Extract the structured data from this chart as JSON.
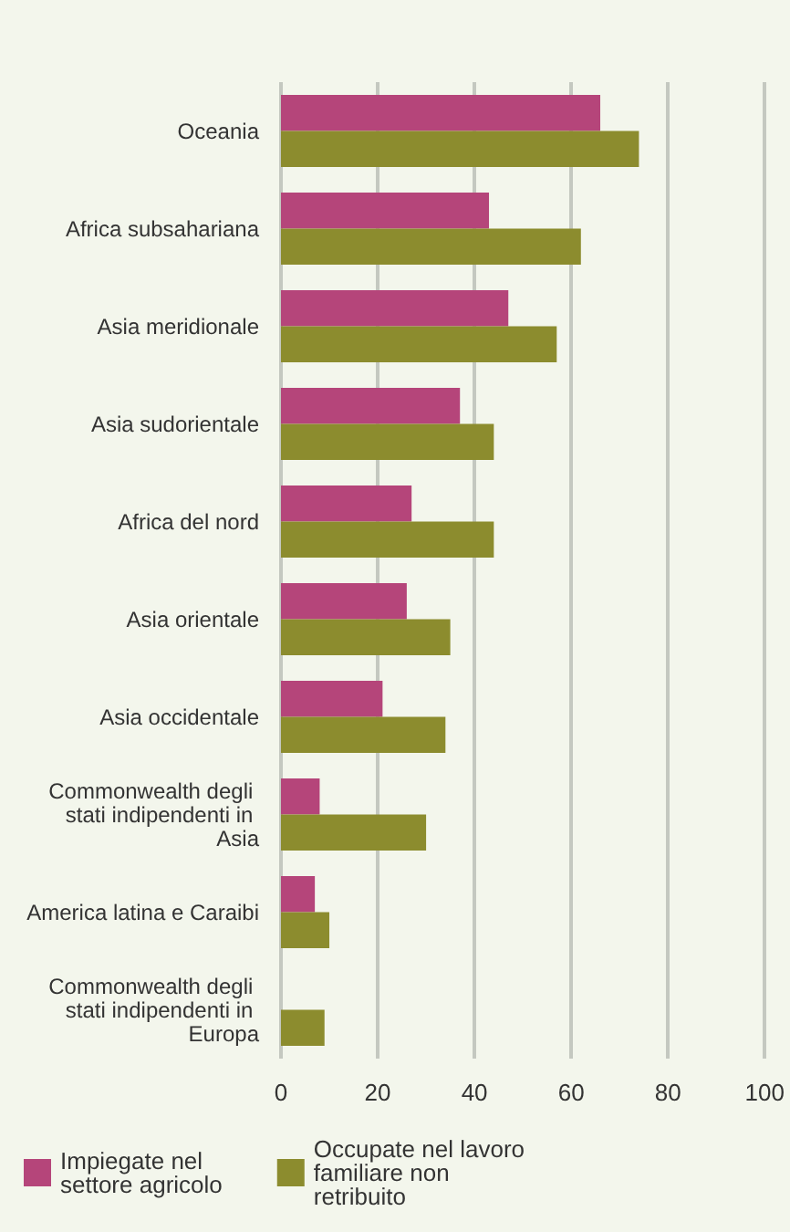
{
  "chart_data": {
    "type": "bar",
    "orientation": "horizontal",
    "categories": [
      "Oceania",
      "Africa subsahariana",
      "Asia meridionale",
      "Asia sudorientale",
      "Africa del nord",
      "Asia orientale",
      "Asia occidentale",
      "Commonwealth degli stati indipendenti in Asia",
      "America latina e Caraibi",
      "Commonwealth degli stati indipendenti in Europa"
    ],
    "series": [
      {
        "name": "Impiegate nel settore agricolo",
        "color": "#b5457a",
        "values": [
          66,
          43,
          47,
          37,
          27,
          26,
          21,
          8,
          7,
          null
        ]
      },
      {
        "name": "Occupate nel lavoro familiare non retribuito",
        "color": "#8c8c2e",
        "values": [
          74,
          62,
          57,
          44,
          44,
          35,
          34,
          30,
          10,
          9
        ]
      }
    ],
    "xlim": [
      0,
      100
    ],
    "xticks": [
      0,
      20,
      40,
      60,
      80,
      100
    ],
    "grid": "x",
    "legend": "bottom"
  }
}
